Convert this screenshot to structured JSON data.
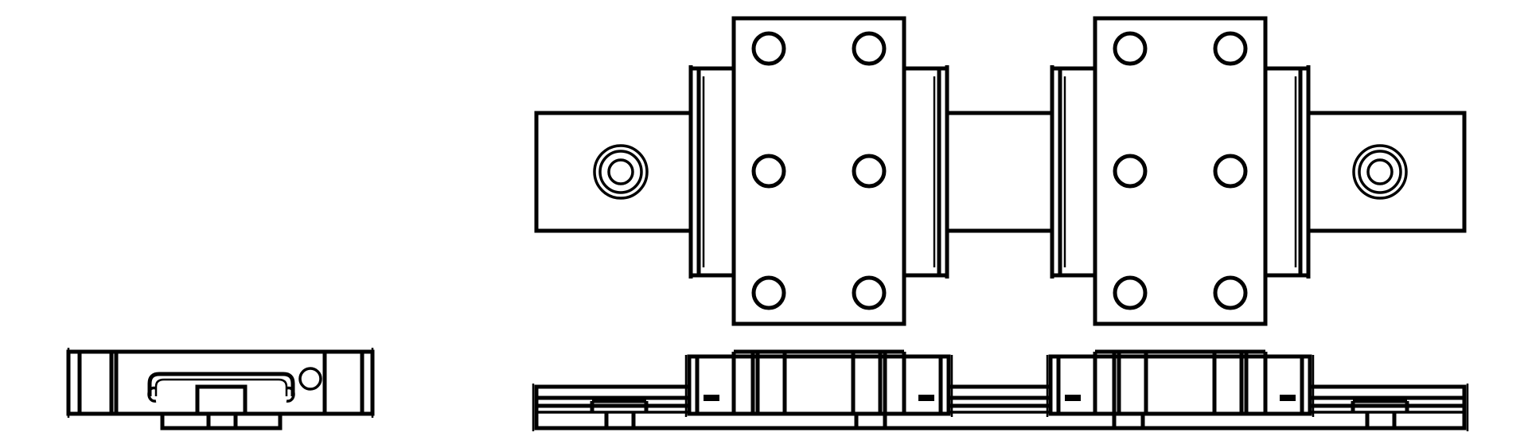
{
  "drawing": {
    "subject": "linear-guide-rail-with-two-carriage-blocks",
    "views": {
      "end_view": {
        "name": "end-view"
      },
      "top_view": {
        "name": "top-view",
        "carriage_count": 2,
        "bolt_holes_per_carriage": 6,
        "rail_end_holes": 2
      },
      "side_view": {
        "name": "side-view",
        "carriage_count": 2
      }
    },
    "colors": {
      "line": "#000000",
      "background": "#ffffff"
    }
  }
}
